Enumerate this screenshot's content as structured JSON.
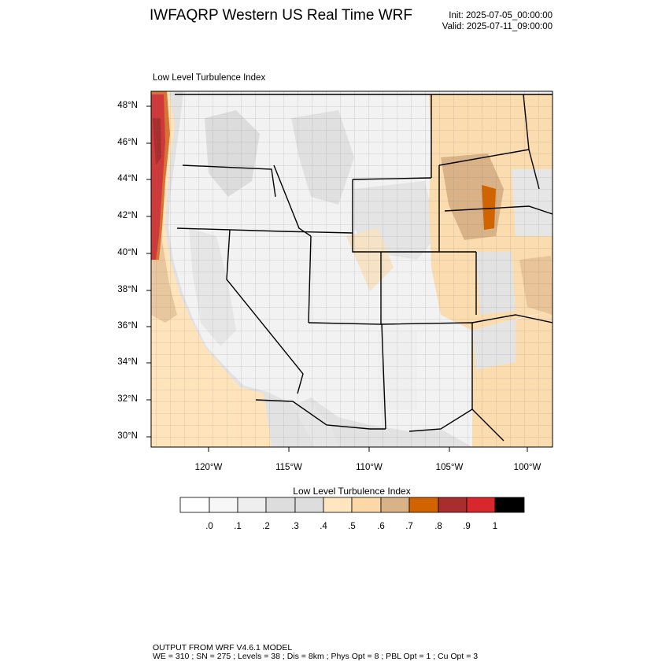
{
  "header": {
    "title": "IWFAQRP Western US Real Time WRF",
    "init": "Init: 2025-07-05_00:00:00",
    "valid": "Valid: 2025-07-11_09:00:00"
  },
  "map": {
    "subtitle": "Low Level Turbulence Index",
    "lat_labels": [
      "48°N",
      "46°N",
      "44°N",
      "42°N",
      "40°N",
      "38°N",
      "36°N",
      "34°N",
      "32°N",
      "30°N"
    ],
    "lon_labels": [
      "120°W",
      "115°W",
      "110°W",
      "105°W",
      "100°W"
    ]
  },
  "colorbar": {
    "title": "Low Level Turbulence Index",
    "tick_labels": [
      ".0",
      ".1",
      ".2",
      ".3",
      ".4",
      ".5",
      ".6",
      ".7",
      ".8",
      ".9",
      "1"
    ],
    "colors": [
      "#ffffff",
      "#f7f7f7",
      "#eeeeee",
      "#dddddd",
      "#ffe6c0",
      "#fbd8a6",
      "#d9b288",
      "#d26400",
      "#a82e2e",
      "#d8282e",
      "#000000"
    ]
  },
  "footer": {
    "line1": "OUTPUT FROM WRF V4.6.1 MODEL",
    "line2": "WE = 310 ; SN = 275 ; Levels = 38 ; Dis = 8km ; Phys Opt = 8 ; PBL Opt = 1 ; Cu Opt = 3"
  }
}
